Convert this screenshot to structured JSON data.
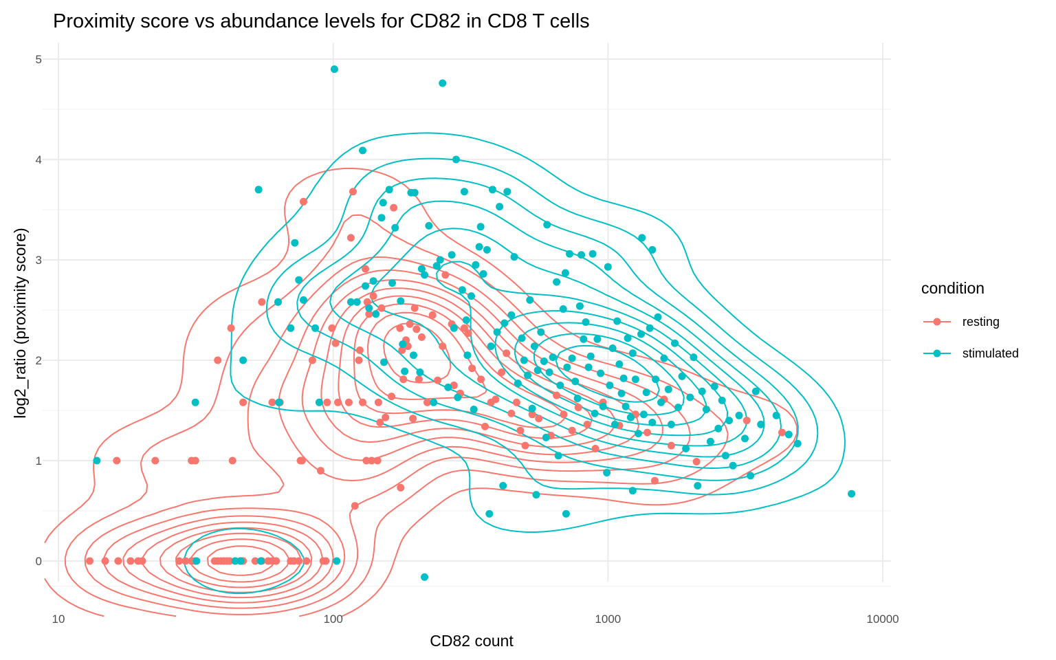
{
  "chart_data": {
    "type": "scatter",
    "title": "Proximity score vs abundance levels for CD82 in CD8 T cells",
    "xlabel": "CD82 count",
    "ylabel": "log2_ratio (proximity score)",
    "x_scale": "log10",
    "xlim": [
      10,
      10000
    ],
    "ylim": [
      -0.35,
      5.15
    ],
    "x_ticks": [
      10,
      100,
      1000,
      10000
    ],
    "x_tick_labels": [
      "10",
      "100",
      "1000",
      "10000"
    ],
    "y_ticks": [
      0,
      1,
      2,
      3,
      4,
      5
    ],
    "y_tick_labels": [
      "0",
      "1",
      "2",
      "3",
      "4",
      "5"
    ],
    "grid": true,
    "legend": {
      "title": "condition",
      "position": "right"
    },
    "overlays": [
      "2d density contours per condition"
    ],
    "series": [
      {
        "name": "resting",
        "color": "#F8766D",
        "points": [
          [
            13,
            0
          ],
          [
            14.8,
            0
          ],
          [
            16.5,
            0
          ],
          [
            18.3,
            0
          ],
          [
            19.5,
            0
          ],
          [
            20.2,
            0
          ],
          [
            27.5,
            0
          ],
          [
            29,
            0
          ],
          [
            30.5,
            0
          ],
          [
            31.5,
            0
          ],
          [
            37,
            0
          ],
          [
            38,
            0
          ],
          [
            39,
            0
          ],
          [
            40,
            0
          ],
          [
            41,
            0
          ],
          [
            42,
            0
          ],
          [
            44,
            0
          ],
          [
            46,
            0
          ],
          [
            47,
            0
          ],
          [
            52,
            0
          ],
          [
            55,
            0
          ],
          [
            58,
            0
          ],
          [
            60,
            0
          ],
          [
            62,
            0
          ],
          [
            70,
            0
          ],
          [
            72,
            0
          ],
          [
            75,
            0
          ],
          [
            80,
            0
          ],
          [
            92,
            0
          ],
          [
            94,
            0
          ],
          [
            16.3,
            1
          ],
          [
            22.5,
            1
          ],
          [
            30.5,
            1
          ],
          [
            31.5,
            1
          ],
          [
            43,
            1
          ],
          [
            76,
            1
          ],
          [
            77,
            1
          ],
          [
            90,
            0.9
          ],
          [
            38,
            2
          ],
          [
            42.5,
            2.32
          ],
          [
            47,
            1.58
          ],
          [
            55,
            2.58
          ],
          [
            60,
            1.58
          ],
          [
            64,
            1.58
          ],
          [
            78,
            3.58
          ],
          [
            84,
            2
          ],
          [
            95,
            1.58
          ],
          [
            99,
            2.32
          ],
          [
            102,
            2.17
          ],
          [
            104,
            1.58
          ],
          [
            114,
            1.58
          ],
          [
            116,
            3.22
          ],
          [
            118,
            3.68
          ],
          [
            124,
            2
          ],
          [
            125,
            2.1
          ],
          [
            128,
            1.58
          ],
          [
            131,
            2.91
          ],
          [
            132,
            1
          ],
          [
            133,
            2.58
          ],
          [
            135,
            2.46
          ],
          [
            138,
            1
          ],
          [
            140,
            2.64
          ],
          [
            145,
            1
          ],
          [
            146,
            1.58
          ],
          [
            148,
            1.38
          ],
          [
            150,
            2.52
          ],
          [
            155,
            1.43
          ],
          [
            163,
            1.64
          ],
          [
            166,
            3.52
          ],
          [
            175,
            2.32
          ],
          [
            178,
            2.1
          ],
          [
            180,
            1.81
          ],
          [
            184,
            2.2
          ],
          [
            187,
            2.14
          ],
          [
            190,
            2.36
          ],
          [
            195,
            1.42
          ],
          [
            198,
            2.52
          ],
          [
            201,
            2.31
          ],
          [
            205,
            1.81
          ],
          [
            210,
            2.23
          ],
          [
            220,
            1.58
          ],
          [
            230,
            2.45
          ],
          [
            240,
            1.8
          ],
          [
            250,
            2.14
          ],
          [
            256,
            2.85
          ],
          [
            270,
            2.36
          ],
          [
            275,
            1.75
          ],
          [
            290,
            1.67
          ],
          [
            300,
            2.32
          ],
          [
            310,
            2.27
          ],
          [
            320,
            1.92
          ],
          [
            345,
            1.81
          ],
          [
            357,
            1.34
          ],
          [
            375,
            1.58
          ],
          [
            390,
            1.61
          ],
          [
            410,
            1.88
          ],
          [
            427,
            2.07
          ],
          [
            445,
            1.47
          ],
          [
            465,
            1.58
          ],
          [
            480,
            1.3
          ],
          [
            500,
            1.15
          ],
          [
            530,
            1.46
          ],
          [
            560,
            1.42
          ],
          [
            620,
            1.25
          ],
          [
            650,
            1.65
          ],
          [
            690,
            1.46
          ],
          [
            740,
            1.3
          ],
          [
            780,
            1.53
          ],
          [
            840,
            1.36
          ],
          [
            900,
            1.12
          ],
          [
            960,
            1.58
          ],
          [
            1100,
            1.35
          ],
          [
            1260,
            1.46
          ],
          [
            1390,
            1.28
          ],
          [
            1480,
            0.8
          ],
          [
            1600,
            1.61
          ],
          [
            1700,
            1.15
          ],
          [
            2100,
            0.99
          ],
          [
            3200,
            1.4
          ],
          [
            4300,
            1.28
          ],
          [
            120,
            0.55
          ],
          [
            176,
            0.73
          ]
        ]
      },
      {
        "name": "stimulated",
        "color": "#00BFC4",
        "points": [
          [
            13.8,
            1
          ],
          [
            31.5,
            1.58
          ],
          [
            31.8,
            0
          ],
          [
            44,
            0
          ],
          [
            46,
            0
          ],
          [
            47,
            2
          ],
          [
            53.5,
            3.7
          ],
          [
            54.5,
            0
          ],
          [
            63,
            2.58
          ],
          [
            63.5,
            1.58
          ],
          [
            70,
            2.32
          ],
          [
            72.5,
            3.17
          ],
          [
            75,
            2.8
          ],
          [
            78,
            2.6
          ],
          [
            86,
            2.32
          ],
          [
            89,
            1.58
          ],
          [
            101,
            4.9
          ],
          [
            103,
            0
          ],
          [
            116,
            2.58
          ],
          [
            122,
            2.58
          ],
          [
            128,
            4.09
          ],
          [
            131,
            2.74
          ],
          [
            135,
            2.52
          ],
          [
            140,
            2.79
          ],
          [
            143,
            2.46
          ],
          [
            150,
            3.42
          ],
          [
            152,
            3.57
          ],
          [
            153,
            1.98
          ],
          [
            160,
            3.7
          ],
          [
            164,
            2.77
          ],
          [
            168,
            3.32
          ],
          [
            176,
            2.59
          ],
          [
            179,
            2.16
          ],
          [
            182,
            1.89
          ],
          [
            192,
            3.67
          ],
          [
            196,
            2.05
          ],
          [
            198,
            3.67
          ],
          [
            207,
            1.88
          ],
          [
            210,
            2.91
          ],
          [
            215,
            2.85
          ],
          [
            223,
            3.34
          ],
          [
            232,
            1.58
          ],
          [
            238,
            2.94
          ],
          [
            245,
            3
          ],
          [
            250,
            4.76
          ],
          [
            262,
            1.73
          ],
          [
            270,
            3.05
          ],
          [
            275,
            2.32
          ],
          [
            280,
            4
          ],
          [
            284,
            1.63
          ],
          [
            295,
            2.7
          ],
          [
            300,
            3.68
          ],
          [
            305,
            2.4
          ],
          [
            308,
            2.05
          ],
          [
            318,
            2.64
          ],
          [
            325,
            1.51
          ],
          [
            330,
            2.95
          ],
          [
            340,
            3.13
          ],
          [
            344,
            3.33
          ],
          [
            352,
            2.86
          ],
          [
            363,
            3.1
          ],
          [
            375,
            2.14
          ],
          [
            380,
            3.7
          ],
          [
            395,
            2.28
          ],
          [
            403,
            3.53
          ],
          [
            420,
            2.37
          ],
          [
            430,
            3.68
          ],
          [
            445,
            2.45
          ],
          [
            456,
            3.03
          ],
          [
            470,
            1.77
          ],
          [
            486,
            2.22
          ],
          [
            495,
            2
          ],
          [
            510,
            1.85
          ],
          [
            520,
            2.6
          ],
          [
            530,
            1.52
          ],
          [
            540,
            2.14
          ],
          [
            548,
            0.66
          ],
          [
            555,
            1.9
          ],
          [
            570,
            2.28
          ],
          [
            585,
            1.99
          ],
          [
            595,
            1.23
          ],
          [
            600,
            3.35
          ],
          [
            612,
            1.88
          ],
          [
            630,
            2.03
          ],
          [
            650,
            2.78
          ],
          [
            660,
            1.05
          ],
          [
            670,
            1.75
          ],
          [
            687,
            2.51
          ],
          [
            700,
            2.87
          ],
          [
            710,
            1.93
          ],
          [
            725,
            3.06
          ],
          [
            740,
            2.02
          ],
          [
            760,
            1.79
          ],
          [
            775,
            1.62
          ],
          [
            790,
            2.54
          ],
          [
            800,
            3.05
          ],
          [
            815,
            2.21
          ],
          [
            830,
            2.38
          ],
          [
            850,
            1.93
          ],
          [
            865,
            2.04
          ],
          [
            880,
            3.06
          ],
          [
            895,
            1.47
          ],
          [
            915,
            2.21
          ],
          [
            940,
            1.87
          ],
          [
            960,
            1.54
          ],
          [
            990,
            0.88
          ],
          [
            1000,
            2.93
          ],
          [
            1015,
            1.75
          ],
          [
            1040,
            2.12
          ],
          [
            1060,
            1.36
          ],
          [
            1080,
            2.39
          ],
          [
            1100,
            1.96
          ],
          [
            1120,
            1.67
          ],
          [
            1140,
            1.82
          ],
          [
            1160,
            1.54
          ],
          [
            1180,
            2.22
          ],
          [
            1210,
            1.43
          ],
          [
            1230,
            2.07
          ],
          [
            1260,
            1.81
          ],
          [
            1290,
            1.27
          ],
          [
            1320,
            2.26
          ],
          [
            1350,
            1.46
          ],
          [
            1380,
            1.68
          ],
          [
            1420,
            2.32
          ],
          [
            1450,
            1.38
          ],
          [
            1490,
            1.81
          ],
          [
            1520,
            2.43
          ],
          [
            1560,
            1.58
          ],
          [
            1600,
            2.02
          ],
          [
            1660,
            1.71
          ],
          [
            1700,
            1.36
          ],
          [
            1750,
            2.17
          ],
          [
            1800,
            1.53
          ],
          [
            1860,
            1.84
          ],
          [
            1920,
            1.12
          ],
          [
            1990,
            1.63
          ],
          [
            2050,
            2.03
          ],
          [
            2120,
            0.75
          ],
          [
            2200,
            1.69
          ],
          [
            2280,
            1.51
          ],
          [
            2360,
            1.19
          ],
          [
            2440,
            1.74
          ],
          [
            2520,
            1.32
          ],
          [
            2600,
            1.6
          ],
          [
            2680,
            1.05
          ],
          [
            2760,
            1.4
          ],
          [
            2850,
            0.95
          ],
          [
            3000,
            1.45
          ],
          [
            3150,
            1.22
          ],
          [
            3300,
            0.85
          ],
          [
            3450,
            1.69
          ],
          [
            3600,
            1.36
          ],
          [
            4100,
            1.45
          ],
          [
            4550,
            1.26
          ],
          [
            4900,
            1.17
          ],
          [
            7700,
            0.67
          ],
          [
            1330,
            3.22
          ],
          [
            1450,
            3.1
          ],
          [
            215,
            -0.16
          ],
          [
            370,
            0.47
          ],
          [
            704,
            0.47
          ],
          [
            415,
            0.75
          ],
          [
            1230,
            0.7
          ]
        ]
      }
    ]
  }
}
